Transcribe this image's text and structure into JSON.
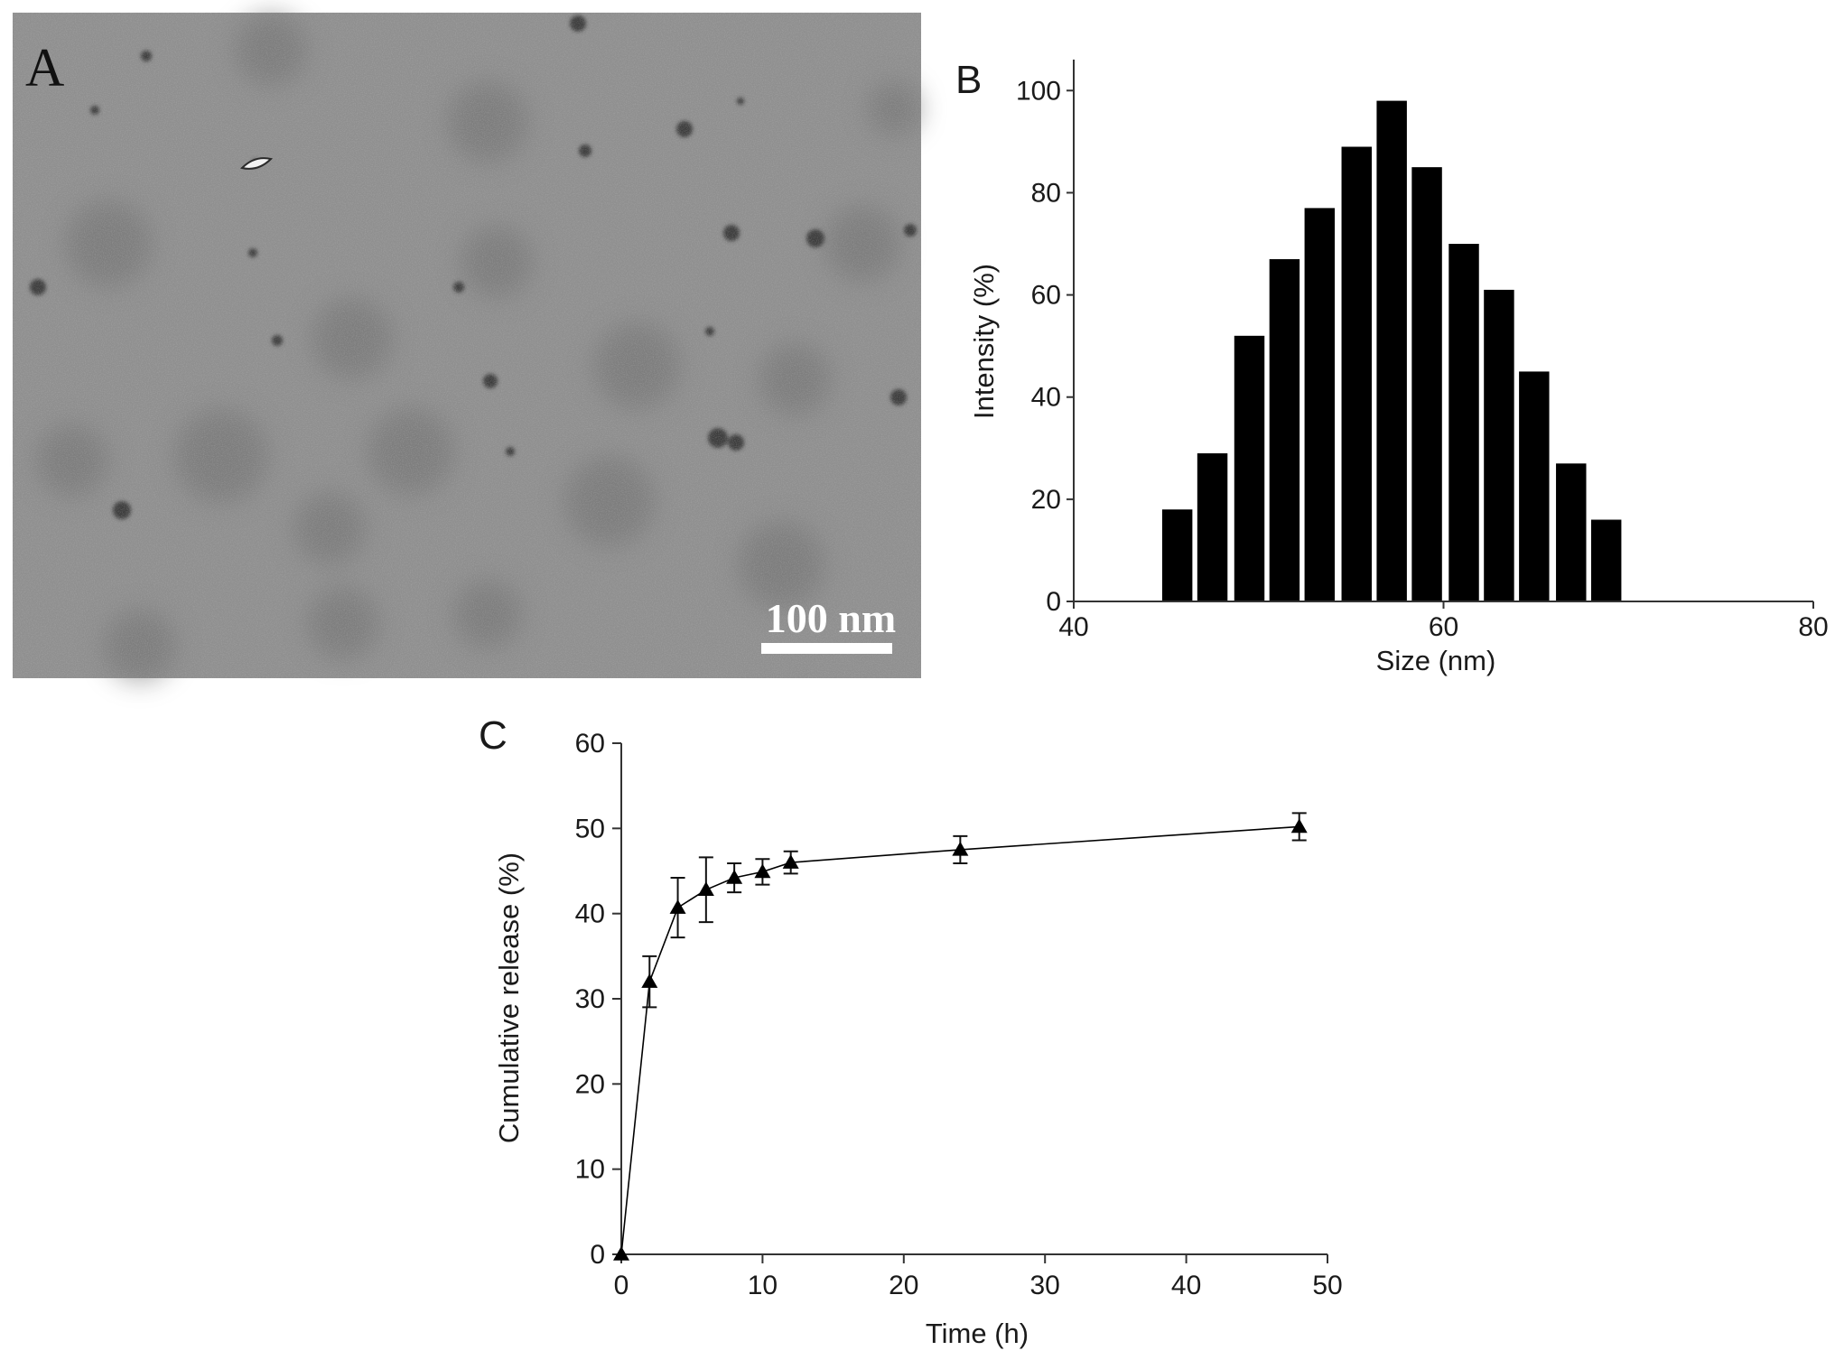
{
  "panels": {
    "a": {
      "letter": "A",
      "scale_bar_label": "100 nm",
      "image_kind": "TEM micrograph of nanoparticles"
    },
    "b": {
      "letter": "B"
    },
    "c": {
      "letter": "C"
    }
  },
  "chart_data": [
    {
      "id": "B",
      "type": "bar",
      "xlabel": "Size (nm)",
      "ylabel": "Intensity (%)",
      "xlim": [
        40,
        80
      ],
      "ylim": [
        0,
        105
      ],
      "xticks": [
        40,
        60,
        80
      ],
      "yticks": [
        0,
        20,
        40,
        60,
        80,
        100
      ],
      "bin_width": 1.9,
      "x": [
        45.6,
        47.5,
        49.5,
        51.4,
        53.3,
        55.3,
        57.2,
        59.1,
        61.1,
        63.0,
        64.9,
        66.9,
        68.8
      ],
      "values": [
        18,
        29,
        52,
        67,
        77,
        89,
        98,
        85,
        70,
        61,
        45,
        27,
        16
      ],
      "bar_color": "#000000",
      "grid": false
    },
    {
      "id": "C",
      "type": "line",
      "xlabel": "Time (h)",
      "ylabel": "Cumulative release (%)",
      "xlim": [
        0,
        50
      ],
      "ylim": [
        0,
        60
      ],
      "xticks": [
        0,
        10,
        20,
        30,
        40,
        50
      ],
      "yticks": [
        0,
        10,
        20,
        30,
        40,
        50,
        60
      ],
      "x": [
        0,
        2,
        4,
        6,
        8,
        10,
        12,
        24,
        48
      ],
      "y": [
        0,
        32.0,
        40.7,
        42.8,
        44.2,
        44.9,
        46.0,
        47.5,
        50.2
      ],
      "error": [
        0,
        3.0,
        3.5,
        3.8,
        1.7,
        1.5,
        1.3,
        1.6,
        1.6
      ],
      "marker": "triangle",
      "color": "#000000",
      "grid": false
    }
  ]
}
